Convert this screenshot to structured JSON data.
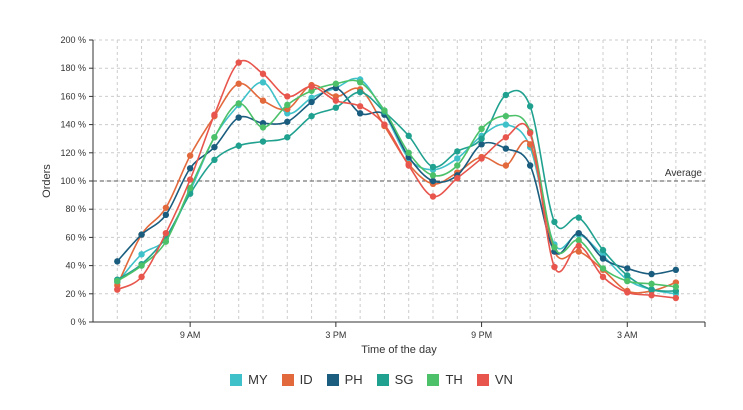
{
  "chart_data": {
    "type": "line",
    "xlabel": "Time of the day",
    "ylabel": "Orders",
    "ylim": [
      0,
      200
    ],
    "y_ticks": [
      0,
      20,
      40,
      60,
      80,
      100,
      120,
      140,
      160,
      180,
      200
    ],
    "y_tick_labels": [
      "0 %",
      "20 %",
      "40 %",
      "60 %",
      "80 %",
      "100 %",
      "120 %",
      "140 %",
      "160 %",
      "180 %",
      "200 %"
    ],
    "x_ticks": [
      9,
      15,
      21,
      27
    ],
    "x_tick_labels": [
      "9 AM",
      "3 PM",
      "9 PM",
      "3 AM"
    ],
    "x": [
      6,
      7,
      8,
      9,
      10,
      11,
      12,
      13,
      14,
      15,
      16,
      17,
      18,
      19,
      20,
      21,
      22,
      23,
      24,
      25,
      26,
      27,
      28,
      29
    ],
    "average_line": {
      "value": 100,
      "label": "Average"
    },
    "grid": true,
    "legend_position": "bottom",
    "series": [
      {
        "name": "MY",
        "color": "#3fc1c9",
        "values": [
          28,
          48,
          59,
          93,
          131,
          154,
          170,
          148,
          159,
          166,
          172,
          148,
          116,
          108,
          116,
          132,
          140,
          124,
          55,
          62,
          47,
          30,
          23,
          20
        ]
      },
      {
        "name": "ID",
        "color": "#e2693c",
        "values": [
          26,
          62,
          81,
          118,
          146,
          169,
          157,
          151,
          168,
          160,
          165,
          139,
          112,
          98,
          106,
          117,
          111,
          126,
          50,
          50,
          37,
          22,
          22,
          28
        ]
      },
      {
        "name": "PH",
        "color": "#1a5d7e",
        "values": [
          43,
          62,
          76,
          109,
          124,
          145,
          141,
          142,
          156,
          166,
          148,
          147,
          117,
          100,
          104,
          126,
          123,
          111,
          50,
          63,
          45,
          38,
          34,
          37
        ]
      },
      {
        "name": "SG",
        "color": "#20a18f",
        "values": [
          30,
          41,
          60,
          91,
          115,
          125,
          128,
          131,
          146,
          152,
          163,
          149,
          132,
          110,
          121,
          130,
          161,
          153,
          71,
          74,
          51,
          33,
          23,
          22
        ]
      },
      {
        "name": "TH",
        "color": "#4cc16a",
        "values": [
          29,
          40,
          57,
          95,
          131,
          155,
          138,
          154,
          164,
          169,
          170,
          150,
          120,
          104,
          111,
          137,
          146,
          135,
          53,
          58,
          38,
          29,
          27,
          25
        ]
      },
      {
        "name": "VN",
        "color": "#e8554d",
        "values": [
          23,
          32,
          63,
          101,
          147,
          184,
          176,
          160,
          167,
          157,
          153,
          140,
          111,
          89,
          102,
          116,
          131,
          134,
          39,
          54,
          32,
          21,
          19,
          17
        ]
      }
    ]
  }
}
